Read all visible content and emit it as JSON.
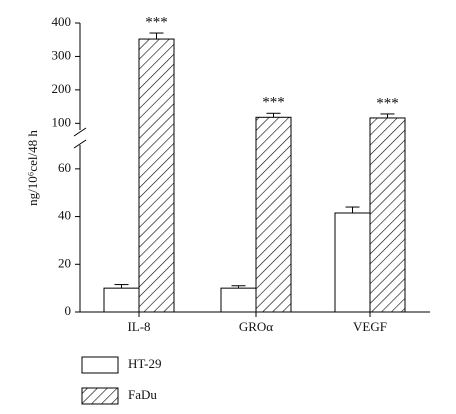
{
  "chart_data": {
    "type": "bar",
    "y_label": "ng/10⁶cel/48 h",
    "categories": [
      "IL-8",
      "GROα",
      "VEGF"
    ],
    "series": [
      {
        "name": "HT-29",
        "color": "#ffffff",
        "values": [
          10,
          10,
          41.5
        ],
        "errors": [
          1.5,
          1,
          2.5
        ]
      },
      {
        "name": "FaDu",
        "color": "hatch",
        "values": [
          352,
          118,
          116
        ],
        "errors": [
          18,
          12,
          12
        ]
      }
    ],
    "annotations": [
      "***",
      "***",
      "***"
    ],
    "ylim": [
      0,
      70
    ],
    "yticks": [
      0,
      20,
      40,
      60
    ],
    "ylim_upper": [
      80,
      400
    ],
    "yticks_upper": [
      100,
      200,
      300,
      400
    ],
    "axis_break": true
  }
}
